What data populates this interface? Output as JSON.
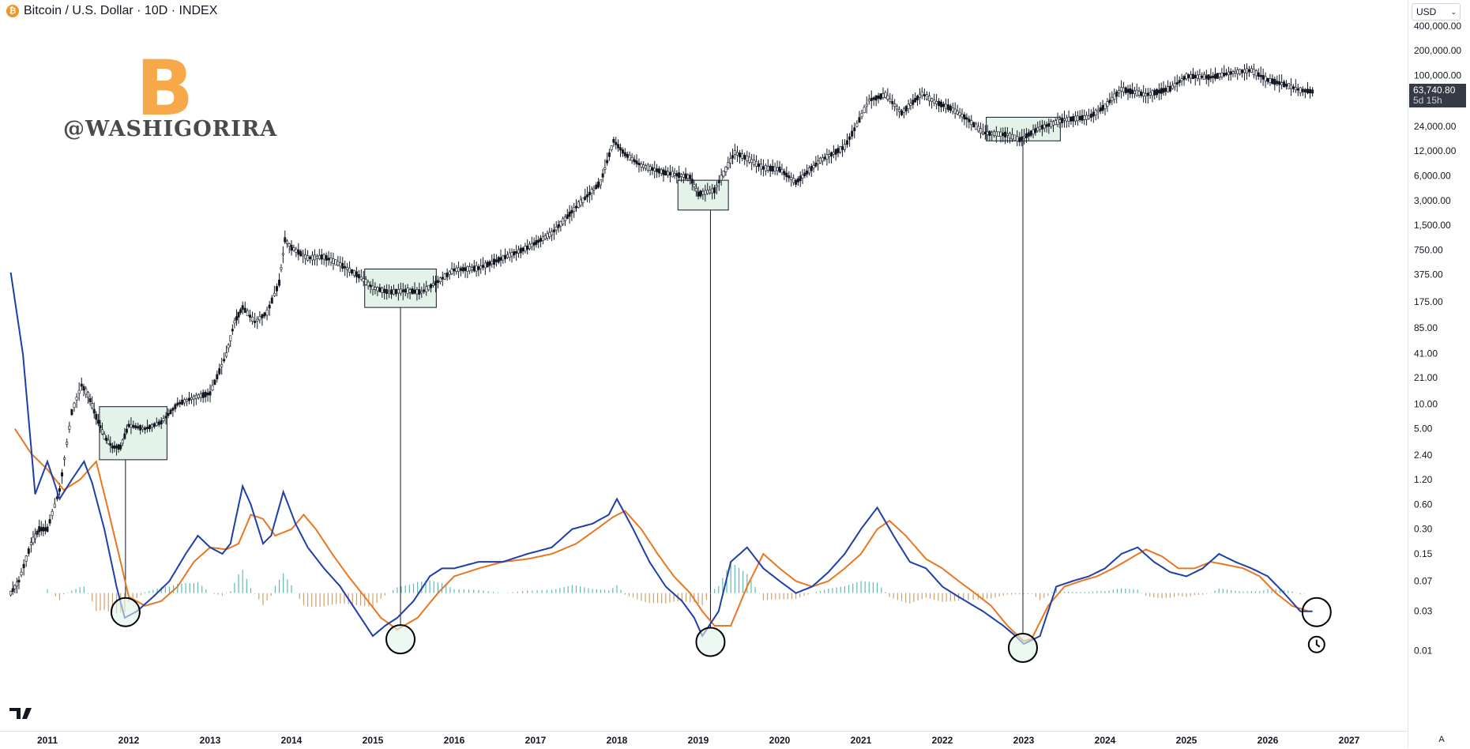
{
  "header": {
    "symbol_icon": "bitcoin-icon",
    "title": "Bitcoin / U.S. Dollar · 10D · INDEX"
  },
  "watermark": {
    "logo_glyph": "B",
    "handle": "@WASHIGORIRA"
  },
  "currency_select": {
    "value": "USD",
    "icon": "chevron-down-icon"
  },
  "last_price": {
    "value": "63,740.80",
    "countdown": "5d 15h"
  },
  "scale_mode": {
    "label": "A"
  },
  "colors": {
    "candles": "#131722",
    "macd_line": "#1f3fa8",
    "signal_line": "#e87722",
    "histogram_positive": "#26a69a",
    "histogram_negative": "#c0803a",
    "highlight_fill": "#e3f3ea",
    "price_badge": "#363a45",
    "brand_orange": "#f7931a"
  },
  "chart_data": [
    {
      "type": "line",
      "title": "Bitcoin / U.S. Dollar · 10D · INDEX",
      "yscale": "log",
      "y_ticks": [
        "400,000.00",
        "200,000.00",
        "100,000.00",
        "24,000.00",
        "12,000.00",
        "6,000.00",
        "3,000.00",
        "1,500.00",
        "750.00",
        "375.00",
        "175.00",
        "85.00",
        "41.00",
        "21.00",
        "10.00",
        "5.00",
        "2.40",
        "1.20",
        "0.60",
        "0.30",
        "0.15",
        "0.07",
        "0.03",
        "0.01"
      ],
      "x_ticks": [
        "2011",
        "2012",
        "2013",
        "2014",
        "2015",
        "2016",
        "2017",
        "2018",
        "2019",
        "2020",
        "2021",
        "2022",
        "2023",
        "2024",
        "2025",
        "2026",
        "2027"
      ],
      "series": [
        {
          "x": [
            2010.55,
            2010.65,
            2010.8,
            2010.9,
            2011.0,
            2011.15,
            2011.3,
            2011.42,
            2011.5,
            2011.6,
            2011.7,
            2011.8,
            2011.9,
            2012.0,
            2012.2,
            2012.4,
            2012.6,
            2012.8,
            2013.0,
            2013.2,
            2013.3,
            2013.4,
            2013.55,
            2013.7,
            2013.85,
            2013.92,
            2014.0,
            2014.2,
            2014.4,
            2014.6,
            2014.8,
            2015.0,
            2015.2,
            2015.4,
            2015.6,
            2015.8,
            2016.0,
            2016.3,
            2016.6,
            2016.9,
            2017.2,
            2017.5,
            2017.8,
            2017.96,
            2018.1,
            2018.3,
            2018.6,
            2018.9,
            2019.0,
            2019.2,
            2019.45,
            2019.6,
            2019.8,
            2020.0,
            2020.2,
            2020.5,
            2020.8,
            2020.95,
            2021.1,
            2021.3,
            2021.5,
            2021.75,
            2021.9,
            2022.1,
            2022.3,
            2022.5,
            2022.8,
            2022.95,
            2023.2,
            2023.5,
            2023.8,
            2024.0,
            2024.2,
            2024.5,
            2024.8,
            2025.0,
            2025.3,
            2025.6,
            2025.8,
            2026.0,
            2026.2,
            2026.4,
            2026.55
          ],
          "y": [
            0.05,
            0.07,
            0.2,
            0.3,
            0.3,
            0.9,
            8,
            17,
            13,
            7,
            4,
            3,
            3,
            5.5,
            5.0,
            6.0,
            10,
            12,
            13.5,
            40,
            100,
            150,
            100,
            130,
            300,
            1000,
            800,
            600,
            620,
            500,
            380,
            260,
            230,
            240,
            230,
            310,
            430,
            450,
            600,
            800,
            1200,
            2500,
            5000,
            16000,
            11000,
            8000,
            6500,
            5800,
            3600,
            4000,
            11500,
            9800,
            7500,
            7200,
            5000,
            9200,
            13500,
            25000,
            50000,
            58000,
            35000,
            60000,
            48000,
            40000,
            30000,
            20000,
            19000,
            16500,
            23000,
            29000,
            31000,
            42000,
            68000,
            58000,
            69000,
            98000,
            95000,
            110000,
            115000,
            88000,
            78000,
            66000,
            63740.8
          ]
        }
      ]
    },
    {
      "type": "line",
      "title": "",
      "series": [
        {
          "x": [
            2010.55,
            2010.7,
            2010.85,
            2011.0,
            2011.15,
            2011.3,
            2011.45,
            2011.55,
            2011.7,
            2011.85,
            2011.95,
            2012.1,
            2012.3,
            2012.5,
            2012.7,
            2012.85,
            2013.0,
            2013.15,
            2013.25,
            2013.4,
            2013.5,
            2013.65,
            2013.75,
            2013.9,
            2014.05,
            2014.2,
            2014.4,
            2014.6,
            2014.8,
            2015.0,
            2015.15,
            2015.3,
            2015.5,
            2015.7,
            2015.85,
            2016.0,
            2016.3,
            2016.6,
            2016.9,
            2017.2,
            2017.45,
            2017.7,
            2017.9,
            2018.0,
            2018.2,
            2018.4,
            2018.6,
            2018.8,
            2018.95,
            2019.05,
            2019.25,
            2019.4,
            2019.6,
            2019.8,
            2020.0,
            2020.2,
            2020.4,
            2020.6,
            2020.8,
            2021.0,
            2021.2,
            2021.4,
            2021.6,
            2021.8,
            2022.0,
            2022.2,
            2022.5,
            2022.75,
            2022.9,
            2023.0,
            2023.2,
            2023.4,
            2023.6,
            2023.8,
            2024.0,
            2024.2,
            2024.4,
            2024.6,
            2024.8,
            2025.0,
            2025.2,
            2025.4,
            2025.6,
            2025.8,
            2026.0,
            2026.2,
            2026.4,
            2026.55
          ],
          "y": [
            400,
            40,
            0.8,
            2.0,
            0.7,
            1.2,
            2.0,
            1.1,
            0.3,
            0.06,
            0.025,
            0.03,
            0.045,
            0.07,
            0.15,
            0.25,
            0.18,
            0.15,
            0.2,
            1.0,
            0.6,
            0.2,
            0.25,
            0.85,
            0.35,
            0.18,
            0.1,
            0.06,
            0.03,
            0.015,
            0.02,
            0.025,
            0.04,
            0.08,
            0.1,
            0.1,
            0.12,
            0.12,
            0.15,
            0.18,
            0.3,
            0.35,
            0.45,
            0.7,
            0.3,
            0.12,
            0.06,
            0.04,
            0.025,
            0.015,
            0.03,
            0.12,
            0.18,
            0.1,
            0.07,
            0.05,
            0.06,
            0.09,
            0.15,
            0.3,
            0.55,
            0.25,
            0.12,
            0.1,
            0.06,
            0.045,
            0.03,
            0.02,
            0.015,
            0.012,
            0.015,
            0.06,
            0.07,
            0.08,
            0.1,
            0.15,
            0.18,
            0.12,
            0.09,
            0.08,
            0.1,
            0.15,
            0.12,
            0.1,
            0.08,
            0.05,
            0.03,
            0.03
          ]
        },
        {
          "x": [
            2010.6,
            2010.8,
            2011.0,
            2011.2,
            2011.4,
            2011.6,
            2011.75,
            2011.9,
            2012.0,
            2012.2,
            2012.4,
            2012.6,
            2012.8,
            2013.0,
            2013.2,
            2013.35,
            2013.5,
            2013.65,
            2013.8,
            2014.0,
            2014.15,
            2014.3,
            2014.5,
            2014.7,
            2014.9,
            2015.1,
            2015.3,
            2015.55,
            2015.8,
            2016.0,
            2016.3,
            2016.6,
            2016.9,
            2017.2,
            2017.5,
            2017.75,
            2017.95,
            2018.1,
            2018.3,
            2018.5,
            2018.7,
            2018.9,
            2019.05,
            2019.2,
            2019.4,
            2019.6,
            2019.8,
            2020.0,
            2020.2,
            2020.4,
            2020.6,
            2020.8,
            2021.0,
            2021.2,
            2021.35,
            2021.55,
            2021.8,
            2022.0,
            2022.2,
            2022.4,
            2022.6,
            2022.8,
            2023.0,
            2023.1,
            2023.3,
            2023.5,
            2023.7,
            2023.9,
            2024.1,
            2024.3,
            2024.5,
            2024.7,
            2024.9,
            2025.1,
            2025.3,
            2025.5,
            2025.7,
            2025.9,
            2026.1,
            2026.3,
            2026.5
          ],
          "y": [
            5,
            2.5,
            1.6,
            0.9,
            1.2,
            2.0,
            0.5,
            0.12,
            0.045,
            0.035,
            0.04,
            0.06,
            0.12,
            0.18,
            0.17,
            0.2,
            0.45,
            0.4,
            0.25,
            0.3,
            0.45,
            0.3,
            0.15,
            0.08,
            0.045,
            0.025,
            0.018,
            0.025,
            0.05,
            0.08,
            0.1,
            0.12,
            0.13,
            0.15,
            0.2,
            0.3,
            0.42,
            0.5,
            0.3,
            0.15,
            0.08,
            0.05,
            0.03,
            0.02,
            0.02,
            0.06,
            0.15,
            0.1,
            0.07,
            0.06,
            0.07,
            0.1,
            0.15,
            0.3,
            0.38,
            0.25,
            0.13,
            0.1,
            0.07,
            0.05,
            0.035,
            0.02,
            0.013,
            0.014,
            0.035,
            0.06,
            0.07,
            0.08,
            0.1,
            0.13,
            0.17,
            0.14,
            0.1,
            0.1,
            0.12,
            0.11,
            0.1,
            0.08,
            0.05,
            0.035,
            0.03
          ]
        }
      ]
    }
  ]
}
